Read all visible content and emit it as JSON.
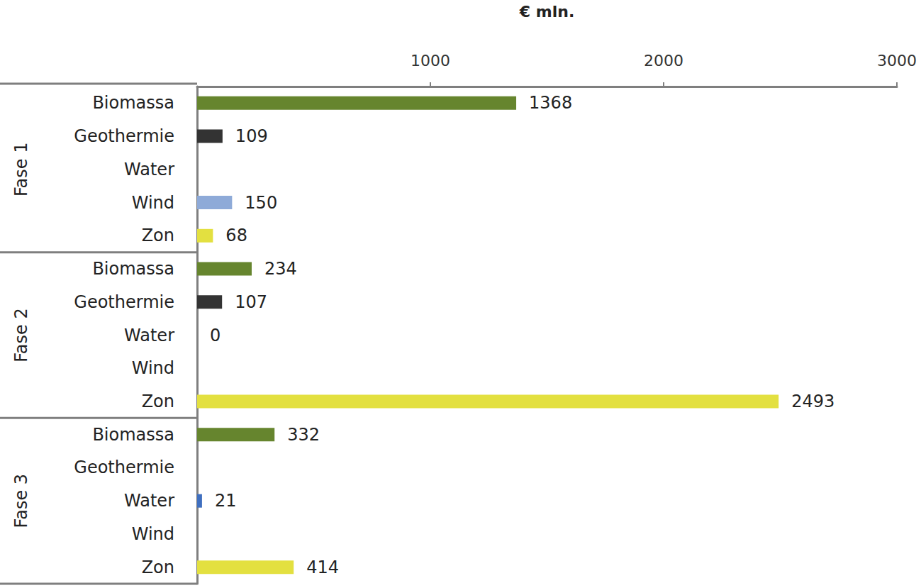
{
  "chart_data": {
    "type": "bar",
    "orientation": "horizontal",
    "x_label": "€ mln.",
    "categories": [
      "Biomassa",
      "Geothermie",
      "Water",
      "Wind",
      "Zon",
      "Biomassa",
      "Geothermie",
      "Water",
      "Wind",
      "Zon",
      "Biomassa",
      "Geothermie",
      "Water",
      "Wind",
      "Zon"
    ],
    "groups": [
      "Fase 1",
      "Fase 1",
      "Fase 1",
      "Fase 1",
      "Fase 1",
      "Fase 2",
      "Fase 2",
      "Fase 2",
      "Fase 2",
      "Fase 2",
      "Fase 3",
      "Fase 3",
      "Fase 3",
      "Fase 3",
      "Fase 3"
    ],
    "values": [
      1368,
      109,
      null,
      150,
      68,
      234,
      107,
      0,
      null,
      2493,
      332,
      null,
      21,
      null,
      414
    ],
    "colors": [
      "#66852e",
      "#333333",
      "#3f6fbf",
      "#8eaad8",
      "#e3e040",
      "#66852e",
      "#333333",
      "#3f6fbf",
      "#8eaad8",
      "#e3e040",
      "#66852e",
      "#333333",
      "#3f6fbf",
      "#8eaad8",
      "#e3e040"
    ],
    "xlim": [
      0,
      3000
    ],
    "xticks": [
      1000,
      2000,
      3000
    ],
    "data_labels": true,
    "grid": false
  }
}
